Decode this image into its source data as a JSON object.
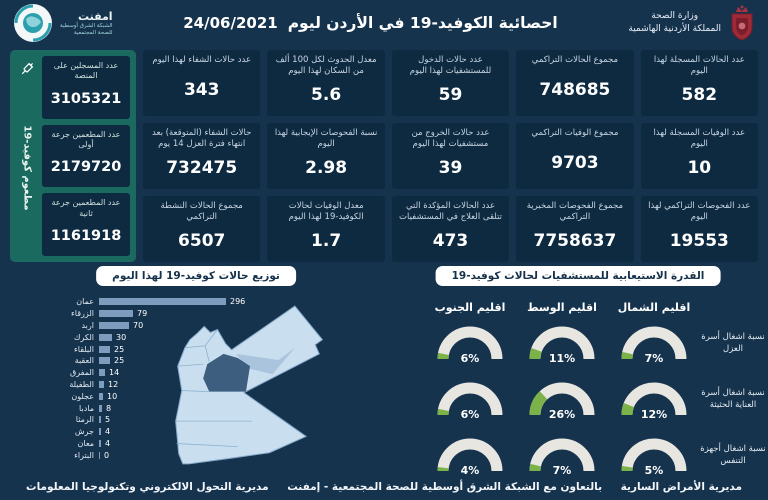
{
  "colors": {
    "background": "#16334E",
    "card": "#0D2A40",
    "vaccine_panel": "#1A6A5F",
    "bar": "#7E9CBE",
    "gauge_fill": "#7CB24A",
    "gauge_track": "#E8E6E1",
    "map_base": "#C9DFF0",
    "map_highlight": "#3E5E80",
    "map_mid": "#A9C4DC",
    "crest_red": "#9E2A38"
  },
  "header": {
    "moh": {
      "line1": "وزارة الصحة",
      "line2": "المملكة الأردنية الهاشمية"
    },
    "title": "احصائية الكوفيد-19 في الأردن ليوم",
    "date": "24/06/2021",
    "emphnet": {
      "name": "امفنت",
      "line1": "الشبكة الشرق أوسطية",
      "line2": "للصحة المجتمعية"
    }
  },
  "stats": {
    "columns": [
      {
        "cards": [
          {
            "label": "عدد الحالات المسجلة لهذا اليوم",
            "value": "582"
          },
          {
            "label": "عدد الوفيات المسجلة لهذا اليوم",
            "value": "10"
          },
          {
            "label": "عدد الفحوصات التراكمي لهذا اليوم",
            "value": "19553"
          }
        ]
      },
      {
        "cards": [
          {
            "label": "مجموع الحالات التراكمي",
            "value": "748685"
          },
          {
            "label": "مجموع الوفيات التراكمي",
            "value": "9703"
          },
          {
            "label": "مجموع الفحوصات المخبرية التراكمي",
            "value": "7758637"
          }
        ]
      },
      {
        "cards": [
          {
            "label": "عدد حالات الدخول للمستشفيات لهذا اليوم",
            "value": "59"
          },
          {
            "label": "عدد حالات الخروج من مستشفيات لهذا اليوم",
            "value": "39"
          },
          {
            "label": "عدد الحالات المؤكدة التي تتلقى العلاج في المستشفيات",
            "value": "473"
          }
        ]
      },
      {
        "cards": [
          {
            "label": "معدل الحدوث لكل 100 ألف من السكان لهذا اليوم",
            "value": "5.6"
          },
          {
            "label": "نسبة الفحوصات الإيجابية لهذا اليوم",
            "value": "2.98"
          },
          {
            "label": "معدل الوفيات لحالات الكوفيد-19 لهذا اليوم",
            "value": "1.7"
          }
        ]
      },
      {
        "cards": [
          {
            "label": "عدد حالات الشفاء لهذا اليوم",
            "value": "343"
          },
          {
            "label": "حالات الشفاء (المتوقعة) بعد انتهاء فترة العزل 14 يوم",
            "value": "732475"
          },
          {
            "label": "مجموع الحالات النشطة التراكمي",
            "value": "6507"
          }
        ]
      }
    ],
    "vaccine_panel": {
      "vertical_label": "مطعوم كوفيد-19",
      "icon": "syringe-icon",
      "cards": [
        {
          "label": "عدد المسجلين على المنصة",
          "value": "3105321"
        },
        {
          "label": "عدد المطعمين جرعة أولى",
          "value": "2179720"
        },
        {
          "label": "عدد المطعمين جرعة ثانية",
          "value": "1161918"
        }
      ]
    }
  },
  "chart_data": [
    {
      "type": "bar",
      "orientation": "horizontal",
      "title": "توزيع حالات كوفيد-19 لهذا اليوم",
      "categories": [
        "عمان",
        "الزرقاء",
        "اربد",
        "الكرك",
        "البلقاء",
        "العقبة",
        "المفرق",
        "الطفيلة",
        "عجلون",
        "مادبا",
        "الرمثا",
        "جرش",
        "معان",
        "البتراء"
      ],
      "values": [
        296,
        79,
        70,
        30,
        25,
        25,
        14,
        12,
        10,
        8,
        5,
        4,
        4,
        0
      ],
      "xlim": [
        0,
        300
      ],
      "bar_color": "#7E9CBE",
      "grid": false,
      "map_note": "خريطة الأردن مع تظليل محافظة عمان"
    },
    {
      "type": "gauge-grid",
      "title": "القدرة الاستيعابية للمستشفيات لحالات كوفيد-19",
      "regions": [
        "اقليم الشمال",
        "اقليم الوسط",
        "اقليم الجنوب"
      ],
      "rows": [
        {
          "label": "نسبة اشغال أسرة العزل",
          "values": [
            7,
            11,
            6
          ]
        },
        {
          "label": "نسبة اشغال أسرة العناية الحثيثة",
          "values": [
            12,
            26,
            6
          ]
        },
        {
          "label": "نسبة اشغال أجهزة التنفس",
          "values": [
            5,
            7,
            4
          ]
        }
      ],
      "unit": "%",
      "range": [
        0,
        100
      ],
      "fill_color": "#7CB24A",
      "track_color": "#E8E6E1"
    }
  ],
  "footer": {
    "right": "مديرية الأمراض السارية",
    "center": "بالتعاون مع الشبكة الشرق أوسطية للصحة المجتمعية - إمفنت",
    "left": "مديرية التحول الالكتروني وتكنولوجيا المعلومات"
  }
}
